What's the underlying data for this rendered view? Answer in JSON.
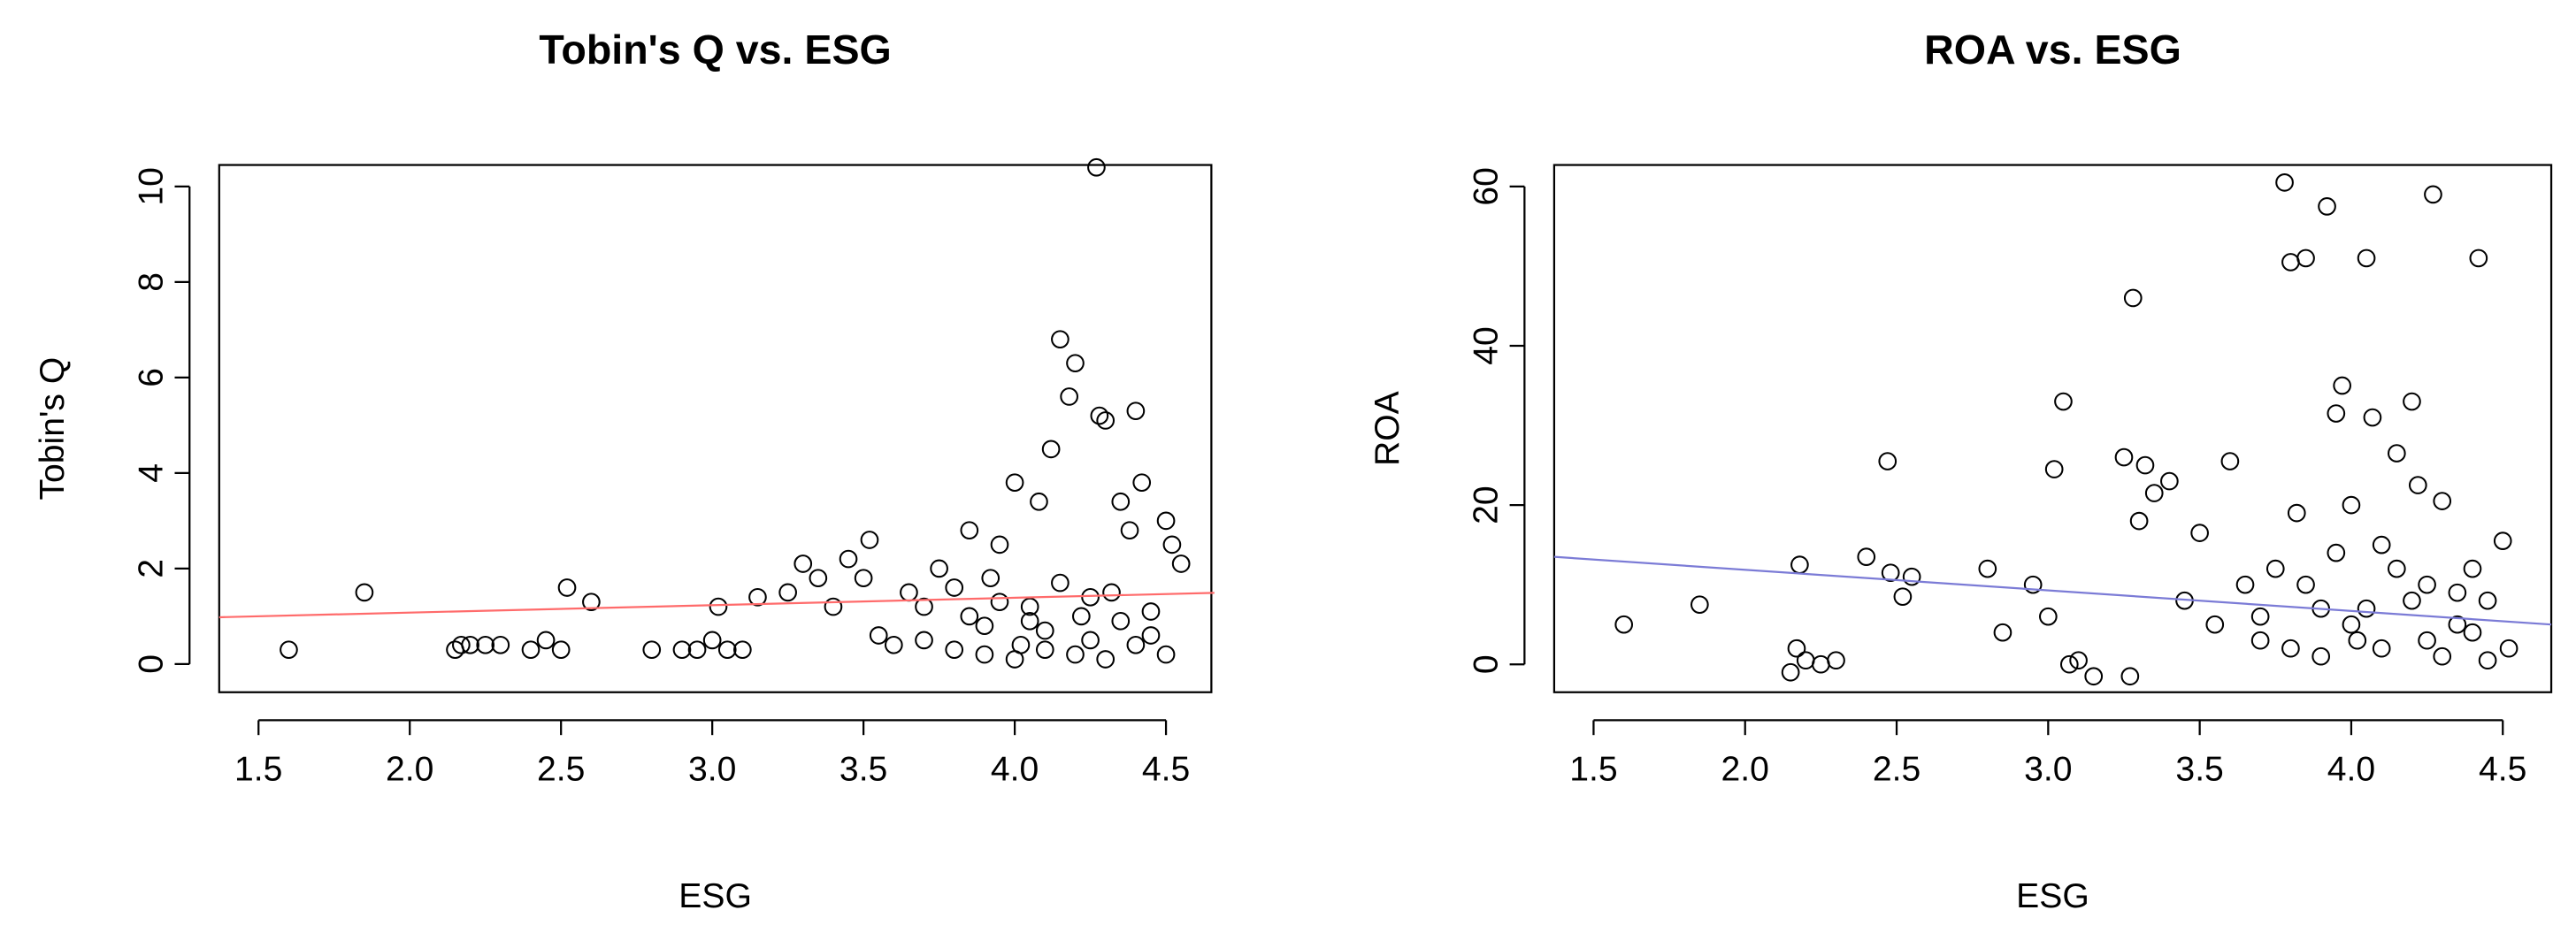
{
  "chart_data": [
    {
      "type": "scatter",
      "title": "Tobin's Q vs. ESG",
      "x_label": "ESG",
      "y_label": "Tobin's Q",
      "color": "#000000",
      "x": [
        1.6,
        1.85,
        2.15,
        2.17,
        2.2,
        2.25,
        2.3,
        2.4,
        2.45,
        2.5,
        2.52,
        2.6,
        2.8,
        2.9,
        2.95,
        3.0,
        3.02,
        3.05,
        3.1,
        3.15,
        3.25,
        3.3,
        3.35,
        3.4,
        3.45,
        3.5,
        3.52,
        3.55,
        3.6,
        3.65,
        3.7,
        3.75,
        3.8,
        3.85,
        3.9,
        3.92,
        3.95,
        4.0,
        4.02,
        4.05,
        4.08,
        4.1,
        4.12,
        4.15,
        4.18,
        4.2,
        4.22,
        4.25,
        4.27,
        4.28,
        4.3,
        4.32,
        4.35,
        4.38,
        4.4,
        4.42,
        4.45,
        4.5,
        4.52,
        4.55,
        3.9,
        4.0,
        4.1,
        4.2,
        4.3,
        4.4,
        3.85,
        3.95,
        4.05,
        4.15,
        4.25,
        4.35,
        4.45,
        3.7,
        3.8,
        4.5
      ],
      "y": [
        0.3,
        1.5,
        0.3,
        0.4,
        0.4,
        0.4,
        0.4,
        0.3,
        0.5,
        0.3,
        1.6,
        1.3,
        0.3,
        0.3,
        0.3,
        0.5,
        1.2,
        0.3,
        0.3,
        1.4,
        1.5,
        2.1,
        1.8,
        1.2,
        2.2,
        1.8,
        2.6,
        0.6,
        0.4,
        1.5,
        0.5,
        2.0,
        0.3,
        2.8,
        0.8,
        1.8,
        2.5,
        3.8,
        0.4,
        1.2,
        3.4,
        0.7,
        4.5,
        6.8,
        5.6,
        6.3,
        1.0,
        0.5,
        10.4,
        5.2,
        5.1,
        1.5,
        3.4,
        2.8,
        5.3,
        3.8,
        0.6,
        3.0,
        2.5,
        2.1,
        0.2,
        0.1,
        0.3,
        0.2,
        0.1,
        0.4,
        1.0,
        1.3,
        0.9,
        1.7,
        1.4,
        0.9,
        1.1,
        1.2,
        1.6,
        0.2
      ],
      "trend_line": {
        "color": "#ff6b6b",
        "x": [
          1.37,
          4.66
        ],
        "y": [
          0.98,
          1.49
        ]
      },
      "xlim": [
        1.37,
        4.65
      ],
      "ylim": [
        -0.59,
        10.45
      ],
      "xticks": [
        1.5,
        {
          "value": 2,
          "label": "2.0"
        },
        2.5,
        {
          "value": 3,
          "label": "3.0"
        },
        3.5,
        {
          "value": 4,
          "label": "4.0"
        },
        4.5
      ],
      "yticks": [
        0,
        2,
        4,
        6,
        8,
        10
      ]
    },
    {
      "type": "scatter",
      "title": "ROA vs. ESG",
      "x_label": "ESG",
      "y_label": "ROA",
      "color": "#000000",
      "x": [
        1.6,
        1.85,
        2.15,
        2.17,
        2.18,
        2.2,
        2.25,
        2.3,
        2.4,
        2.47,
        2.48,
        2.52,
        2.55,
        2.8,
        2.85,
        2.95,
        3.0,
        3.02,
        3.05,
        3.07,
        3.1,
        3.15,
        3.25,
        3.27,
        3.28,
        3.3,
        3.32,
        3.35,
        3.4,
        3.45,
        3.5,
        3.55,
        3.6,
        3.65,
        3.7,
        3.75,
        3.78,
        3.8,
        3.82,
        3.85,
        3.9,
        3.92,
        3.95,
        3.97,
        4.0,
        4.02,
        4.05,
        4.07,
        4.1,
        4.15,
        4.2,
        4.22,
        4.25,
        4.27,
        4.3,
        4.35,
        4.4,
        4.42,
        4.45,
        4.5,
        4.52,
        3.9,
        4.0,
        4.1,
        4.2,
        4.3,
        4.4,
        3.85,
        3.95,
        4.05,
        4.15,
        4.25,
        4.35,
        4.45,
        3.7,
        3.8
      ],
      "y": [
        5,
        7.5,
        -1,
        2,
        12.5,
        0.5,
        0,
        0.5,
        13.5,
        25.5,
        11.5,
        8.5,
        11,
        12,
        4,
        10,
        6,
        24.5,
        33,
        0,
        0.5,
        -1.5,
        26,
        -1.5,
        46,
        18,
        25,
        21.5,
        23,
        8,
        16.5,
        5,
        25.5,
        10,
        3,
        12,
        60.5,
        50.5,
        19,
        51,
        7,
        57.5,
        31.5,
        35,
        20,
        3,
        51,
        31,
        15,
        26.5,
        33,
        22.5,
        10,
        59,
        20.5,
        5,
        12,
        51,
        8,
        15.5,
        2,
        1,
        5,
        2,
        8,
        1,
        4,
        10,
        14,
        7,
        12,
        3,
        9,
        0.5,
        6,
        2
      ],
      "trend_line": {
        "color": "#7b7bd6",
        "x": [
          1.37,
          4.66
        ],
        "y": [
          13.5,
          5.0
        ]
      },
      "xlim": [
        1.37,
        4.66
      ],
      "ylim": [
        -3.5,
        62.7
      ],
      "xticks": [
        1.5,
        {
          "value": 2,
          "label": "2.0"
        },
        2.5,
        {
          "value": 3,
          "label": "3.0"
        },
        3.5,
        {
          "value": 4,
          "label": "4.0"
        },
        4.5
      ],
      "yticks": [
        0,
        20,
        40,
        60
      ]
    }
  ]
}
